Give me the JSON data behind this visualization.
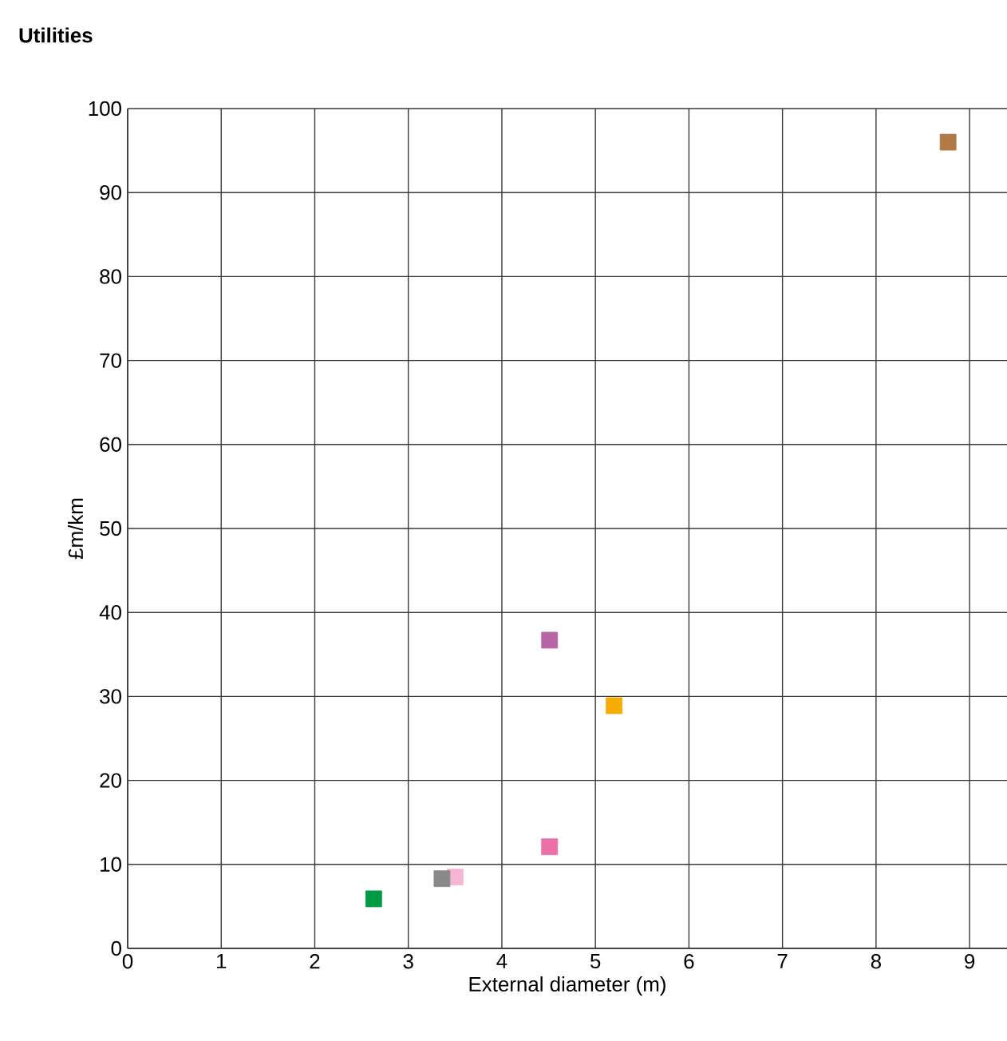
{
  "chart_data": {
    "type": "scatter",
    "title": "Utilities",
    "xlabel": "External diameter (m)",
    "ylabel": "£m/km",
    "x": [
      8.77,
      4.51,
      5.2,
      4.51,
      3.5,
      3.36,
      2.63
    ],
    "values": [
      96,
      36.7,
      28.9,
      12.1,
      8.5,
      8.3,
      5.9
    ],
    "colors": [
      "#b07a45",
      "#b865a5",
      "#f7ac00",
      "#ec6fa7",
      "#f5b6d4",
      "#898989",
      "#009a44"
    ],
    "marker": "square",
    "grid": true,
    "xlim": [
      0,
      9.4
    ],
    "ylim": [
      0,
      100
    ],
    "xticks": [
      0,
      1,
      2,
      3,
      4,
      5,
      6,
      7,
      8,
      9
    ],
    "yticks": [
      0,
      10,
      20,
      30,
      40,
      50,
      60,
      70,
      80,
      90,
      100
    ]
  }
}
